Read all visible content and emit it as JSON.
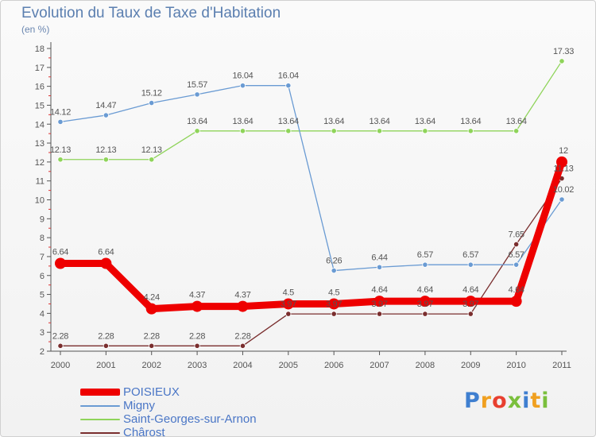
{
  "chart_data": {
    "type": "line",
    "title": "Evolution du Taux de Taxe d'Habitation",
    "subtitle": "(en %)",
    "x": [
      "2000",
      "2001",
      "2002",
      "2003",
      "2004",
      "2005",
      "2006",
      "2007",
      "2008",
      "2009",
      "2010",
      "2011"
    ],
    "ylim": [
      2,
      18
    ],
    "yticks": [
      2,
      3,
      4,
      5,
      6,
      7,
      8,
      9,
      10,
      11,
      12,
      13,
      14,
      15,
      16,
      17,
      18
    ],
    "grid": false,
    "legend": "bottom-left",
    "series": [
      {
        "name": "POISIEUX",
        "color": "#ee0000",
        "values": [
          6.64,
          6.64,
          4.24,
          4.37,
          4.37,
          4.5,
          4.5,
          4.64,
          4.64,
          4.64,
          4.64,
          12
        ],
        "labels": [
          "6.64",
          "6.64",
          "4.24",
          "4.37",
          "4.37",
          "4.5",
          "4.5",
          "4.64",
          "4.64",
          "4.64",
          "4.64",
          "12"
        ]
      },
      {
        "name": "Migny",
        "color": "#6a9bd3",
        "values": [
          14.12,
          14.47,
          15.12,
          15.57,
          16.04,
          16.04,
          6.26,
          6.44,
          6.57,
          6.57,
          6.57,
          10.02
        ],
        "labels": [
          "14.12",
          "14.47",
          "15.12",
          "15.57",
          "16.04",
          "16.04",
          "6.26",
          "6.44",
          "6.57",
          "6.57",
          "6.57",
          "10.02"
        ]
      },
      {
        "name": "Saint-Georges-sur-Arnon",
        "color": "#8fd45a",
        "values": [
          12.13,
          12.13,
          12.13,
          13.64,
          13.64,
          13.64,
          13.64,
          13.64,
          13.64,
          13.64,
          13.64,
          17.33
        ],
        "labels": [
          "12.13",
          "12.13",
          "12.13",
          "13.64",
          "13.64",
          "13.64",
          "13.64",
          "13.64",
          "13.64",
          "13.64",
          "13.64",
          "17.33"
        ]
      },
      {
        "name": "Chârost",
        "color": "#7a2e2e",
        "values": [
          2.28,
          2.28,
          2.28,
          2.28,
          2.28,
          3.97,
          3.97,
          3.97,
          3.97,
          3.97,
          7.65,
          11.13
        ],
        "labels": [
          "2.28",
          "2.28",
          "2.28",
          "2.28",
          "2.28",
          "3.97",
          "3.97",
          "3.97",
          "3.97",
          "3.97",
          "7.65",
          "11.13"
        ]
      }
    ]
  },
  "logo": {
    "letters": [
      "P",
      "r",
      "o",
      "x",
      "i",
      "t",
      "i"
    ],
    "colors": [
      "#3f7fd0",
      "#f0a020",
      "#e84030",
      "#7abf3c",
      "#3f7fd0",
      "#f0a020",
      "#7abf3c"
    ]
  }
}
